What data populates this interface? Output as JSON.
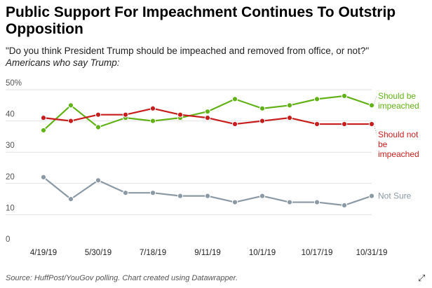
{
  "title": "Public Support For Impeachment Continues To Outstrip Opposition",
  "subtitle": "\"Do you think President Trump should be impeached and removed from office, or not?\"",
  "subtitle_italic": "Americans who say Trump:",
  "source": "Source: HuffPost/YouGov polling. Chart created using Datawrapper.",
  "expand_icon": "expand-icon",
  "colors": {
    "impeached": "#62b217",
    "not_impeached": "#c71e1d",
    "not_sure": "#8a99a3",
    "grid": "#e2e2e2"
  },
  "chart_data": {
    "type": "line",
    "x_tick_labels": [
      "4/19/19",
      "5/30/19",
      "7/18/19",
      "9/11/19",
      "10/1/19",
      "10/17/19",
      "10/31/19"
    ],
    "y_tick_labels": [
      "50%",
      "40",
      "30",
      "20",
      "10",
      "0"
    ],
    "ylim": [
      0,
      50
    ],
    "grid": true,
    "series": [
      {
        "key": "impeached",
        "name": "Should be impeached",
        "label_lines": [
          "Should be",
          "impeached"
        ],
        "values": [
          37,
          45,
          38,
          41,
          40,
          41,
          43,
          47,
          44,
          45,
          47,
          48,
          45
        ]
      },
      {
        "key": "not_impeached",
        "name": "Should not be impeached",
        "label_lines": [
          "Should not",
          "be",
          "impeached"
        ],
        "values": [
          41,
          40,
          42,
          42,
          44,
          42,
          41,
          39,
          40,
          41,
          39,
          39,
          39
        ]
      },
      {
        "key": "not_sure",
        "name": "Not Sure",
        "label_lines": [
          "Not Sure"
        ],
        "values": [
          22,
          15,
          21,
          17,
          17,
          16,
          16,
          14,
          16,
          14,
          14,
          13,
          16
        ]
      }
    ]
  }
}
